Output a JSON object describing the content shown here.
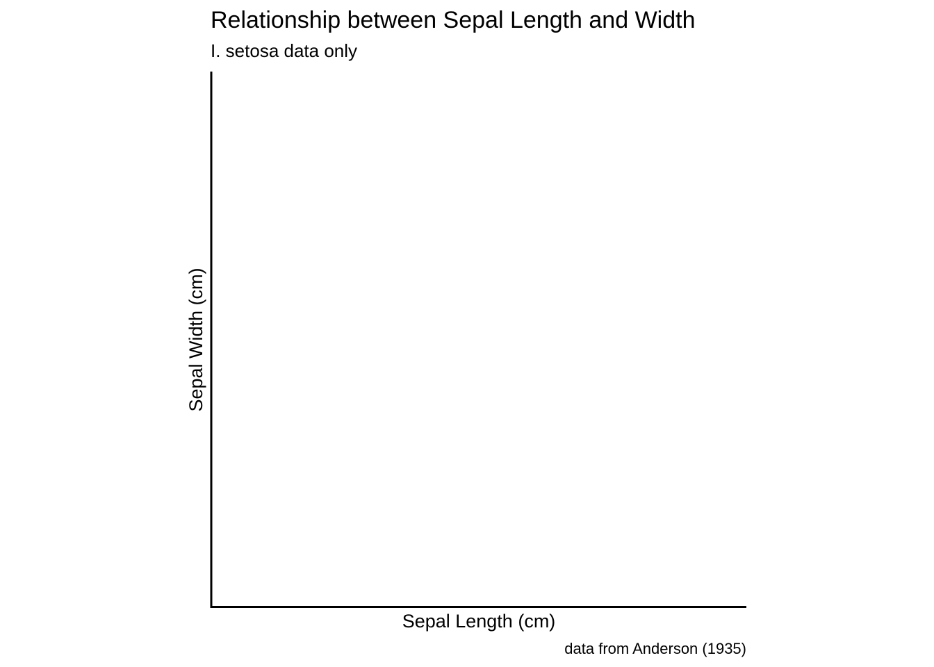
{
  "chart_data": {
    "type": "scatter",
    "title": "Relationship between Sepal Length and Width",
    "subtitle": "I. setosa data only",
    "xlabel": "Sepal Length (cm)",
    "ylabel": "Sepal Width (cm)",
    "caption": "data from Anderson (1935)",
    "series": [],
    "grid": false,
    "colors": {
      "axis": "#000000",
      "text": "#000000",
      "background": "#ffffff"
    }
  }
}
